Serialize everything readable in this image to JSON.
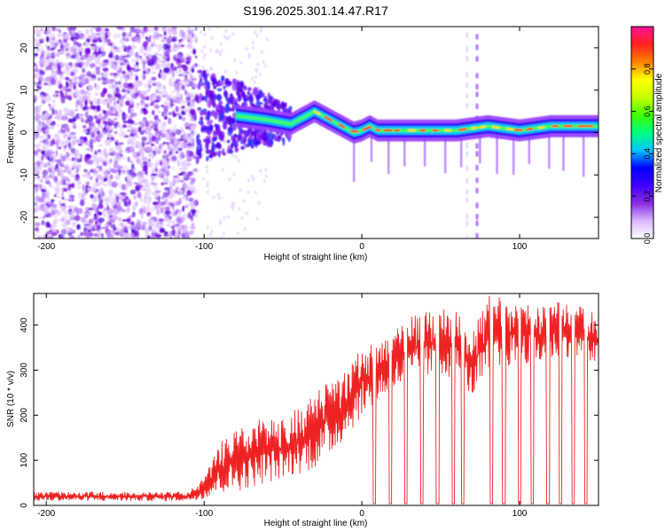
{
  "figure_title": "S196.2025.301.14.47.R17",
  "chart_data": [
    {
      "type": "heatmap",
      "title": "S196.2025.301.14.47.R17",
      "xlabel": "Height of straight line (km)",
      "ylabel": "Frequency (Hz)",
      "xlim": [
        -208,
        150
      ],
      "ylim": [
        -25,
        25
      ],
      "x_ticks": [
        -200,
        -100,
        0,
        100
      ],
      "x_tick_labels": [
        "-200",
        "-100",
        "0",
        "100"
      ],
      "y_ticks": [
        -20,
        -10,
        0,
        10,
        20
      ],
      "y_tick_labels": [
        "-20",
        "-10",
        "0",
        "10",
        "20"
      ],
      "colorbar": {
        "label": "Normalized spectral amplitude",
        "range": [
          0,
          1
        ],
        "ticks": [
          0.0,
          0.2,
          0.4,
          0.6,
          0.8
        ],
        "tick_labels": [
          "0.0",
          "0.2",
          "0.4",
          "0.6",
          "0.8"
        ],
        "colormap": [
          "#ffffff",
          "#d8b8ff",
          "#8a2be2",
          "#4000ff",
          "#0000ff",
          "#00c8ff",
          "#00ff80",
          "#40ff00",
          "#c8ff00",
          "#ffff00",
          "#ff8000",
          "#ff2020",
          "#ff1493"
        ]
      },
      "ridge_line": {
        "x": [
          -105,
          -80,
          -60,
          -45,
          -35,
          -30,
          -25,
          -20,
          -15,
          -10,
          -5,
          0,
          5,
          10,
          30,
          60,
          80,
          100,
          120,
          150
        ],
        "y": [
          4,
          4,
          3,
          2,
          4,
          5,
          4,
          3,
          2,
          1,
          0,
          0.5,
          1.5,
          0.5,
          0.5,
          0.5,
          1.5,
          0.5,
          1.5,
          1.5
        ]
      },
      "noise_region_x": [
        -208,
        -105
      ],
      "vertical_streaks_x": [
        67,
        73
      ]
    },
    {
      "type": "line",
      "title": "",
      "xlabel": "Height of straight line (km)",
      "ylabel": "SNR (10 * v/v)",
      "xlim": [
        -208,
        150
      ],
      "ylim": [
        0,
        470
      ],
      "x_ticks": [
        -200,
        -100,
        0,
        100
      ],
      "x_tick_labels": [
        "-200",
        "-100",
        "0",
        "100"
      ],
      "y_ticks": [
        0,
        100,
        200,
        300,
        400
      ],
      "y_tick_labels": [
        "0",
        "100",
        "200",
        "300",
        "400"
      ],
      "color": "#ee2222",
      "series": [
        {
          "name": "SNR",
          "x": [
            -208,
            -150,
            -110,
            -100,
            -90,
            -80,
            -70,
            -60,
            -50,
            -40,
            -30,
            -20,
            -10,
            0,
            10,
            20,
            30,
            40,
            50,
            60,
            70,
            80,
            90,
            100,
            110,
            120,
            130,
            140,
            150
          ],
          "y_low": [
            10,
            10,
            10,
            15,
            25,
            30,
            40,
            50,
            60,
            70,
            80,
            110,
            150,
            200,
            230,
            250,
            270,
            280,
            290,
            280,
            240,
            280,
            300,
            320,
            310,
            320,
            330,
            320,
            300
          ],
          "y_high": [
            30,
            30,
            30,
            60,
            140,
            170,
            180,
            200,
            190,
            220,
            250,
            280,
            300,
            350,
            360,
            390,
            420,
            430,
            440,
            430,
            380,
            470,
            460,
            450,
            440,
            450,
            460,
            440,
            420
          ]
        }
      ],
      "dropouts_x": [
        8,
        18,
        28,
        38,
        48,
        58,
        64,
        82,
        90,
        100,
        108,
        118,
        126,
        134,
        142
      ]
    }
  ]
}
